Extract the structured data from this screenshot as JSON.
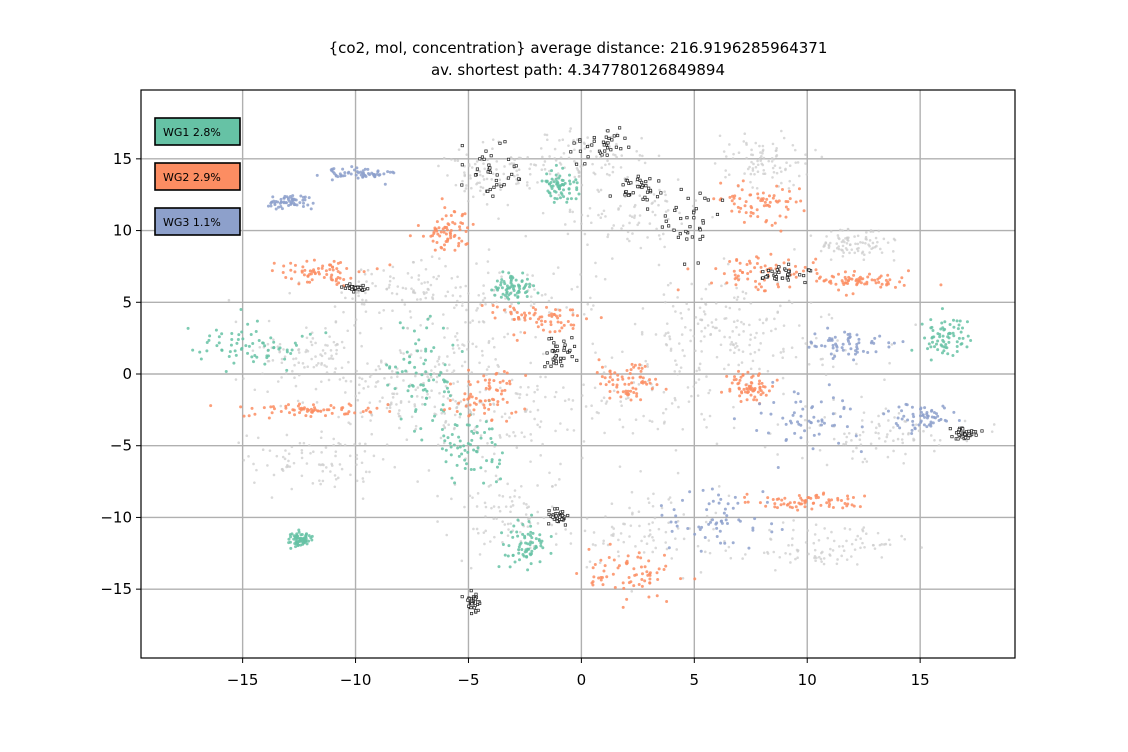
{
  "chart_data": {
    "type": "scatter",
    "title_lines": [
      "{co2, mol, concentration} average distance: 216.9196285964371",
      "av. shortest path: 4.347780126849894"
    ],
    "xlabel": "",
    "ylabel": "",
    "xlim": [
      -19.5,
      19.2
    ],
    "ylim": [
      -19.8,
      19.8
    ],
    "xticks": [
      -15,
      -10,
      -5,
      0,
      5,
      10,
      15
    ],
    "xtick_labels": [
      "−15",
      "−10",
      "−5",
      "0",
      "5",
      "10",
      "15"
    ],
    "yticks": [
      -15,
      -10,
      -5,
      0,
      5,
      10,
      15
    ],
    "ytick_labels": [
      "−15",
      "−10",
      "−5",
      "0",
      "5",
      "10",
      "15"
    ],
    "grid": true,
    "legend_placement": "upper-left",
    "legend": [
      {
        "label": "WG1 2.8%",
        "color": "#66c2a5"
      },
      {
        "label": "WG2 2.9%",
        "color": "#fc8d62"
      },
      {
        "label": "WG3 1.1%",
        "color": "#8da0cb"
      }
    ],
    "series": [
      {
        "color": "#cccccc",
        "regions": [
          [
            -12,
            1.5,
            3.5,
            2.5
          ],
          [
            -8,
            6,
            4,
            2
          ],
          [
            -3,
            5,
            4,
            3
          ],
          [
            -9,
            -1,
            5,
            3
          ],
          [
            -4,
            -3,
            5,
            4
          ],
          [
            2,
            -2,
            6,
            4
          ],
          [
            8,
            2,
            5,
            3
          ],
          [
            13,
            -4,
            4,
            2
          ],
          [
            -12,
            -6,
            3,
            2
          ],
          [
            -3,
            -10,
            3,
            3
          ],
          [
            3,
            -11,
            4,
            3
          ],
          [
            11,
            -12,
            3,
            1.5
          ],
          [
            2,
            11,
            3,
            3
          ],
          [
            -4,
            14,
            2,
            2
          ],
          [
            8,
            15,
            2,
            2
          ],
          [
            12,
            9,
            2,
            1
          ],
          [
            -6,
            0,
            3,
            5
          ],
          [
            6,
            4,
            3,
            3
          ],
          [
            0,
            15,
            3,
            2
          ]
        ]
      },
      {
        "color": "#66c2a5",
        "regions": [
          [
            -14.5,
            2,
            2.5,
            1.5
          ],
          [
            -7,
            0,
            1.5,
            3
          ],
          [
            -5,
            -5,
            1.5,
            2.5
          ],
          [
            -3,
            6,
            1,
            1
          ],
          [
            -2.5,
            -12,
            1,
            1.5
          ],
          [
            -12.5,
            -11.5,
            0.5,
            0.5
          ],
          [
            16,
            2.5,
            1,
            1.5
          ],
          [
            -1,
            13,
            0.8,
            1.2
          ]
        ]
      },
      {
        "color": "#fc8d62",
        "regions": [
          [
            -12,
            -2.5,
            3,
            0.5
          ],
          [
            -11.5,
            7,
            2,
            1
          ],
          [
            8,
            7,
            2.5,
            1.2
          ],
          [
            -4.5,
            -1.5,
            1.5,
            2
          ],
          [
            2,
            -0.5,
            1.5,
            1.5
          ],
          [
            10,
            -9,
            2.5,
            0.6
          ],
          [
            2,
            -14,
            2.5,
            1.5
          ],
          [
            7.5,
            -1,
            1,
            1
          ],
          [
            8,
            12,
            1.5,
            1.5
          ],
          [
            -6,
            10,
            1,
            1.5
          ],
          [
            12.5,
            6.5,
            2,
            0.6
          ],
          [
            -2,
            4,
            2,
            1
          ]
        ]
      },
      {
        "color": "#8da0cb",
        "regions": [
          [
            10,
            -3,
            3,
            2
          ],
          [
            6,
            -10,
            3,
            2.5
          ],
          [
            12,
            2,
            2,
            1
          ],
          [
            15,
            -3,
            1.5,
            1
          ],
          [
            -10,
            14,
            1.5,
            0.4
          ],
          [
            -13,
            12,
            1,
            0.4
          ]
        ]
      },
      {
        "color": "#222222",
        "regions": [
          [
            -4,
            14,
            1.2,
            2
          ],
          [
            0.8,
            16,
            1.2,
            1.5
          ],
          [
            2.5,
            13,
            1,
            1.2
          ],
          [
            5,
            11,
            1.2,
            2.5
          ],
          [
            -1,
            1.5,
            0.8,
            1
          ],
          [
            9,
            7,
            1.5,
            0.5
          ],
          [
            17,
            -4.2,
            0.5,
            0.4
          ],
          [
            -10,
            6,
            0.6,
            0.2
          ],
          [
            -4.8,
            -16,
            0.3,
            0.8
          ],
          [
            -1,
            -10,
            0.5,
            0.5
          ]
        ]
      }
    ]
  }
}
